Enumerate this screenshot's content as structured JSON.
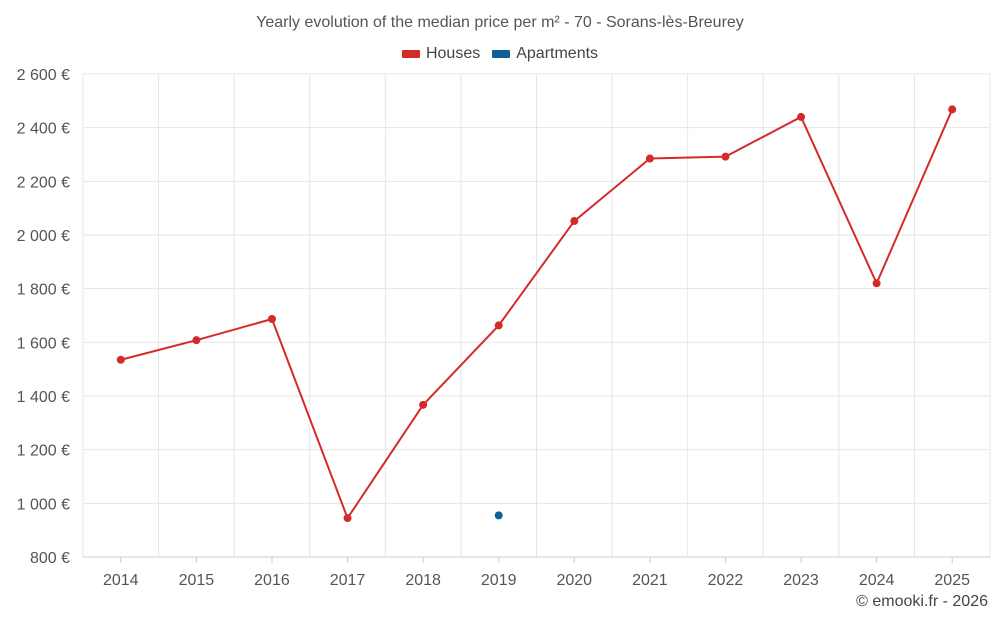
{
  "chart_data": {
    "type": "line",
    "title": "Yearly evolution of the median price per m² - 70 - Sorans-lès-Breurey",
    "categories": [
      "2014",
      "2015",
      "2016",
      "2017",
      "2018",
      "2019",
      "2020",
      "2021",
      "2022",
      "2023",
      "2024",
      "2025"
    ],
    "y_tick_values": [
      800,
      1000,
      1200,
      1400,
      1600,
      1800,
      2000,
      2200,
      2400,
      2600
    ],
    "y_tick_labels": [
      "800 €",
      "1 000 €",
      "1 200 €",
      "1 400 €",
      "1 600 €",
      "1 800 €",
      "2 000 €",
      "2 200 €",
      "2 400 €",
      "2 600 €"
    ],
    "ylim": [
      800,
      2600
    ],
    "grid": true,
    "legend_position": "top-center",
    "series": [
      {
        "name": "Houses",
        "color": "#d42a2a",
        "values": [
          1535,
          1608,
          1687,
          945,
          1367,
          1663,
          2052,
          2285,
          2292,
          2440,
          1820,
          2468
        ]
      },
      {
        "name": "Apartments",
        "color": "#0b6199",
        "values": [
          null,
          null,
          null,
          null,
          null,
          955,
          null,
          null,
          null,
          null,
          null,
          null
        ]
      }
    ]
  },
  "legend": {
    "houses_label": "Houses",
    "apartments_label": "Apartments"
  },
  "footer": {
    "copyright": "© emooki.fr - 2026"
  }
}
